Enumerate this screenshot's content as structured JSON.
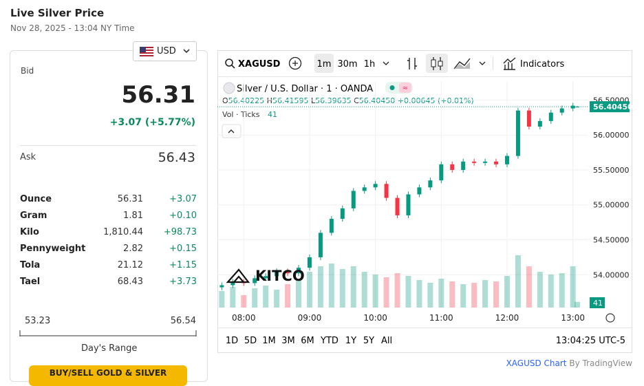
{
  "header": {
    "title": "Live Silver Price",
    "timestamp": "Nov 28, 2025 - 13:04 NY Time"
  },
  "price_card": {
    "currency": "USD",
    "bid_label": "Bid",
    "bid": "56.31",
    "change": "+3.07 (+5.77%)",
    "ask_label": "Ask",
    "ask": "56.43",
    "units": [
      {
        "name": "Ounce",
        "price": "56.31",
        "change": "+3.07"
      },
      {
        "name": "Gram",
        "price": "1.81",
        "change": "+0.10"
      },
      {
        "name": "Kilo",
        "price": "1,810.44",
        "change": "+98.73"
      },
      {
        "name": "Pennyweight",
        "price": "2.82",
        "change": "+0.15"
      },
      {
        "name": "Tola",
        "price": "21.12",
        "change": "+1.15"
      },
      {
        "name": "Tael",
        "price": "68.43",
        "change": "+3.73"
      }
    ],
    "range_low": "53.23",
    "range_high": "56.54",
    "range_label": "Day's Range",
    "button": "BUY/SELL GOLD & SILVER"
  },
  "toolbar": {
    "symbol": "XAGUSD",
    "intervals": [
      "1m",
      "30m",
      "1h"
    ],
    "indicators": "Indicators"
  },
  "legend": {
    "title": "Silver / U.S. Dollar · 1 · OANDA",
    "ohlc": [
      {
        "key": "O",
        "value": "56.40225"
      },
      {
        "key": "H",
        "value": "56.41595"
      },
      {
        "key": "L",
        "value": "56.39635"
      },
      {
        "key": "C",
        "value": "56.40450"
      }
    ],
    "change": "+0.00645 (+0.01%)",
    "volume_label": "Vol · Ticks"
  },
  "chart_data": {
    "type": "candlestick",
    "x": [
      460,
      470,
      480,
      490,
      500,
      510,
      520,
      530,
      540,
      550,
      560,
      570,
      580,
      590,
      600,
      610,
      620,
      630,
      640,
      650,
      660,
      670,
      680,
      690,
      700,
      710,
      720,
      730,
      740,
      750,
      760,
      770,
      780,
      784
    ],
    "open": [
      53.82,
      53.85,
      53.9,
      53.88,
      53.95,
      53.98,
      54.05,
      54.02,
      54.1,
      54.25,
      54.6,
      54.8,
      54.95,
      55.2,
      55.25,
      55.3,
      55.1,
      54.85,
      55.15,
      55.25,
      55.35,
      55.58,
      55.5,
      55.62,
      55.6,
      55.62,
      55.58,
      55.7,
      56.35,
      56.12,
      56.2,
      56.32,
      56.38,
      56.40225
    ],
    "high": [
      53.89,
      53.94,
      53.94,
      53.99,
      54.02,
      54.09,
      54.09,
      54.14,
      54.29,
      54.64,
      54.84,
      54.99,
      55.24,
      55.29,
      55.34,
      55.34,
      55.14,
      55.19,
      55.29,
      55.39,
      55.62,
      55.62,
      55.66,
      55.66,
      55.66,
      55.66,
      55.74,
      56.39,
      56.39,
      56.24,
      56.36,
      56.42,
      56.46,
      56.41595
    ],
    "low": [
      53.78,
      53.81,
      53.84,
      53.84,
      53.91,
      53.94,
      53.98,
      53.98,
      54.06,
      54.21,
      54.56,
      54.76,
      54.91,
      55.16,
      55.21,
      55.06,
      54.81,
      54.81,
      55.11,
      55.21,
      55.31,
      55.46,
      55.46,
      55.56,
      55.56,
      55.54,
      55.54,
      55.66,
      56.08,
      56.08,
      56.16,
      56.28,
      56.34,
      56.39635
    ],
    "close": [
      53.85,
      53.9,
      53.88,
      53.95,
      53.98,
      54.05,
      54.02,
      54.1,
      54.25,
      54.6,
      54.8,
      54.95,
      55.2,
      55.25,
      55.3,
      55.1,
      54.85,
      55.15,
      55.25,
      55.35,
      55.58,
      55.5,
      55.62,
      55.6,
      55.62,
      55.58,
      55.7,
      56.35,
      56.12,
      56.2,
      56.32,
      56.38,
      56.42,
      56.4045
    ],
    "volume": [
      120,
      150,
      90,
      140,
      160,
      130,
      170,
      200,
      260,
      300,
      320,
      280,
      300,
      260,
      240,
      220,
      250,
      230,
      200,
      180,
      210,
      190,
      170,
      180,
      200,
      190,
      230,
      380,
      300,
      260,
      240,
      250,
      300,
      41
    ],
    "volume_ylim": [
      0,
      450
    ],
    "up_color": "#089981",
    "down_color": "#f23645",
    "ylim": [
      53.53,
      56.77
    ],
    "yticks": [
      {
        "value": 54,
        "label": "54.00000"
      },
      {
        "value": 54.5,
        "label": "54.50000"
      },
      {
        "value": 55,
        "label": "55.00000"
      },
      {
        "value": 55.5,
        "label": "55.50000"
      },
      {
        "value": 56,
        "label": "56.00000"
      },
      {
        "value": 56.5,
        "label": "56.50000"
      }
    ],
    "xlim": [
      456,
      794
    ],
    "xticks": [
      {
        "value": 480,
        "label": "08:00"
      },
      {
        "value": 540,
        "label": "09:00"
      },
      {
        "value": 600,
        "label": "10:00"
      },
      {
        "value": 660,
        "label": "11:00"
      },
      {
        "value": 720,
        "label": "12:00"
      },
      {
        "value": 780,
        "label": "13:00"
      }
    ],
    "last_price": {
      "value": 56.4045,
      "label": "56.40450"
    }
  },
  "ranges": [
    "1D",
    "5D",
    "1M",
    "3M",
    "6M",
    "YTD",
    "1Y",
    "5Y",
    "All"
  ],
  "clock": "13:04:25 UTC-5",
  "watermark": "KITCO",
  "attribution": {
    "link": "XAGUSD Chart",
    "by": "By TradingView"
  }
}
